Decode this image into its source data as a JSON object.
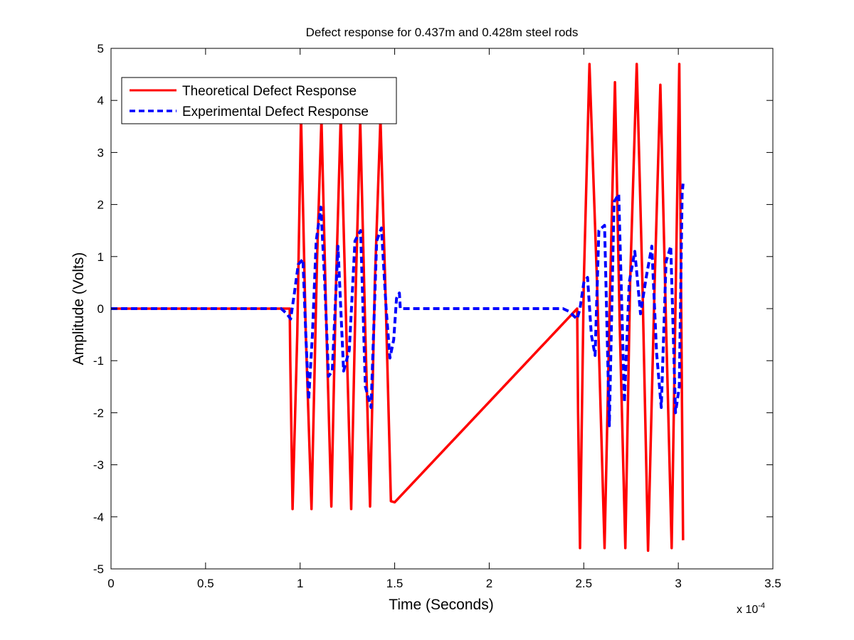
{
  "chart_data": {
    "type": "line",
    "title": "Defect response for 0.437m and 0.428m steel rods",
    "xlabel": "Time (Seconds)",
    "ylabel": "Amplitude (Volts)",
    "x_scale_label": "x 10",
    "x_scale_exponent": "-4",
    "xlim": [
      0,
      3.5
    ],
    "ylim": [
      -5,
      5
    ],
    "x_ticks": [
      0,
      0.5,
      1,
      1.5,
      2,
      2.5,
      3,
      3.5
    ],
    "x_tick_labels": [
      "0",
      "0.5",
      "1",
      "1.5",
      "2",
      "2.5",
      "3",
      "3.5"
    ],
    "y_ticks": [
      5,
      4,
      3,
      2,
      1,
      0,
      -1,
      -2,
      -3,
      -4,
      -5
    ],
    "y_tick_labels": [
      "5",
      "4",
      "3",
      "2",
      "1",
      "0",
      "-1",
      "-2",
      "-3",
      "-4",
      "-5"
    ],
    "grid": false,
    "legend_position": "top-left",
    "series": [
      {
        "name": "Theoretical Defect Response",
        "color": "#ff0000",
        "style": "solid",
        "x": [
          0,
          0.945,
          0.948,
          0.96,
          0.985,
          1.005,
          1.03,
          1.06,
          1.09,
          1.113,
          1.14,
          1.165,
          1.19,
          1.215,
          1.245,
          1.27,
          1.295,
          1.318,
          1.345,
          1.37,
          1.395,
          1.425,
          1.45,
          1.48,
          1.5,
          2.465,
          2.47,
          2.48,
          2.5,
          2.53,
          2.57,
          2.61,
          2.64,
          2.665,
          2.69,
          2.72,
          2.745,
          2.78,
          2.81,
          2.84,
          2.875,
          2.905,
          2.935,
          2.965,
          3.005,
          3.025
        ],
        "y": [
          0,
          0,
          -1.0,
          -3.85,
          -0.5,
          3.7,
          -0.5,
          -3.85,
          1.0,
          3.65,
          -0.5,
          -3.8,
          0.5,
          3.7,
          -0.5,
          -3.85,
          0.5,
          3.6,
          -0.5,
          -3.8,
          0.5,
          3.65,
          0.5,
          -3.7,
          -3.72,
          0,
          -2.0,
          -4.6,
          0.5,
          4.7,
          0.5,
          -4.6,
          0.5,
          4.35,
          -0.3,
          -4.6,
          0.5,
          4.7,
          0.5,
          -4.65,
          0.5,
          4.3,
          -0.3,
          -4.6,
          4.7,
          -4.45
        ]
      },
      {
        "name": "Experimental Defect Response",
        "color": "#0000ff",
        "style": "dashed",
        "x": [
          0,
          0.86,
          0.9,
          0.93,
          0.95,
          0.97,
          0.99,
          1.015,
          1.03,
          1.045,
          1.065,
          1.085,
          1.11,
          1.13,
          1.15,
          1.17,
          1.2,
          1.23,
          1.26,
          1.29,
          1.32,
          1.345,
          1.375,
          1.405,
          1.43,
          1.455,
          1.475,
          1.495,
          1.51,
          1.525,
          1.53,
          2.39,
          2.42,
          2.45,
          2.465,
          2.48,
          2.5,
          2.52,
          2.54,
          2.56,
          2.58,
          2.61,
          2.635,
          2.66,
          2.685,
          2.715,
          2.74,
          2.77,
          2.8,
          2.83,
          2.86,
          2.885,
          2.91,
          2.935,
          2.96,
          2.985,
          3.005,
          3.02,
          3.025
        ],
        "y": [
          0,
          0,
          0.0,
          -0.1,
          -0.2,
          0.3,
          0.85,
          0.95,
          -0.5,
          -1.75,
          -0.5,
          1.3,
          1.95,
          0.5,
          -1.3,
          -1.2,
          1.2,
          -1.2,
          -0.8,
          1.3,
          1.5,
          -1.5,
          -1.9,
          1.3,
          1.55,
          0.0,
          -0.95,
          -0.6,
          0.2,
          0.3,
          0,
          0,
          -0.05,
          -0.15,
          -0.2,
          0.0,
          0.5,
          0.6,
          -0.5,
          -0.9,
          1.5,
          1.6,
          -2.25,
          2.05,
          2.2,
          -1.8,
          0.5,
          1.1,
          -0.1,
          0.6,
          1.2,
          -0.85,
          -1.9,
          0.9,
          1.2,
          -2.0,
          -1.5,
          2.2,
          2.4
        ]
      }
    ]
  }
}
